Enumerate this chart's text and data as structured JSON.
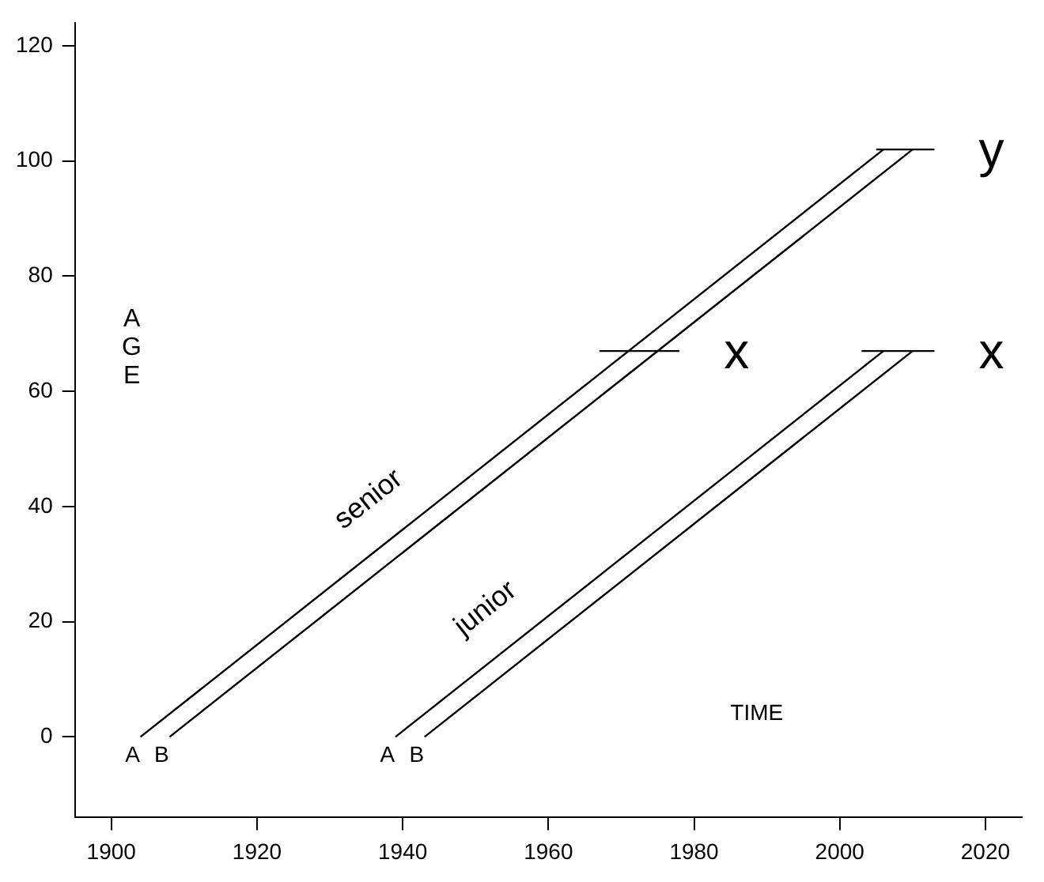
{
  "chart_data": {
    "type": "line",
    "xlabel": "TIME",
    "ylabel": "AGE",
    "xlim": [
      1895,
      2025
    ],
    "ylim": [
      -14,
      124
    ],
    "xticks": [
      1900,
      1920,
      1940,
      1960,
      1980,
      2000,
      2020
    ],
    "yticks": [
      0,
      20,
      40,
      60,
      80,
      100,
      120
    ],
    "grid": false,
    "legend": false,
    "marker": "none",
    "line_style": "solid",
    "series": [
      {
        "color": "#000000",
        "x": [
          1904,
          2006
        ],
        "values": [
          0,
          102
        ]
      },
      {
        "color": "#000000",
        "x": [
          1908,
          2010
        ],
        "values": [
          0,
          102
        ]
      },
      {
        "color": "#000000",
        "x": [
          1939,
          2006
        ],
        "values": [
          0,
          67
        ]
      },
      {
        "color": "#000000",
        "x": [
          1943,
          2010
        ],
        "values": [
          0,
          67
        ]
      },
      {
        "color": "#000000",
        "x": [
          1967,
          1978
        ],
        "values": [
          67,
          67
        ]
      },
      {
        "color": "#000000",
        "x": [
          2003,
          2013
        ],
        "values": [
          67,
          67
        ]
      },
      {
        "color": "#000000",
        "x": [
          2005,
          2013
        ],
        "values": [
          102,
          102
        ]
      }
    ],
    "annotations": [
      "senior",
      "junior",
      "A",
      "B",
      "A",
      "B",
      "x",
      "x",
      "y"
    ]
  }
}
